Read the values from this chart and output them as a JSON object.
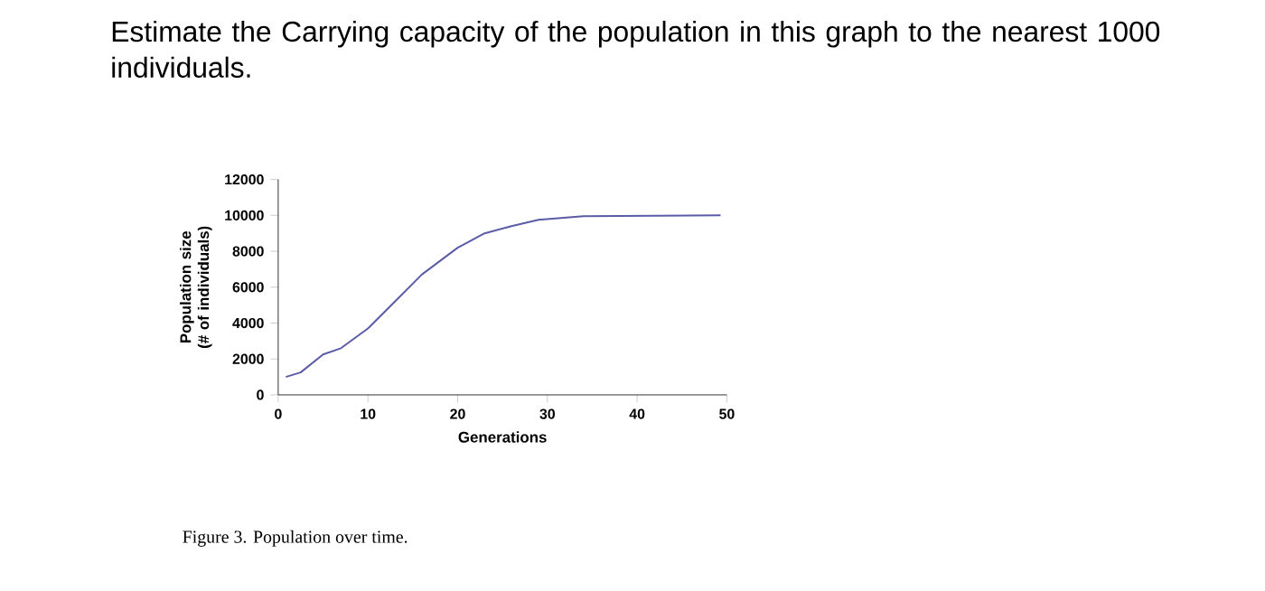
{
  "chart_data": {
    "type": "line",
    "title": "Estimate the Carrying capacity of the population in this graph to the nearest 1000 individuals.",
    "xlabel": "Generations",
    "ylabel": "Population size (# of individuals)",
    "annotations": [
      "Figure 3. Population over time."
    ],
    "series": [
      {
        "color": "#5b5ba8",
        "x": [
          0.85,
          2.5,
          5,
          7,
          10,
          13,
          16,
          20,
          23,
          26,
          29,
          34,
          49.3
        ],
        "values": [
          1000,
          1250,
          2250,
          2600,
          3700,
          5200,
          6700,
          8200,
          9000,
          9400,
          9750,
          9950,
          10000
        ]
      }
    ],
    "xlim": [
      0,
      50
    ],
    "ylim": [
      0,
      12000
    ],
    "xticks": [
      0,
      10,
      20,
      30,
      40,
      50
    ],
    "yticks": [
      0,
      2000,
      4000,
      6000,
      8000,
      10000,
      12000
    ],
    "line_style": "solid"
  }
}
